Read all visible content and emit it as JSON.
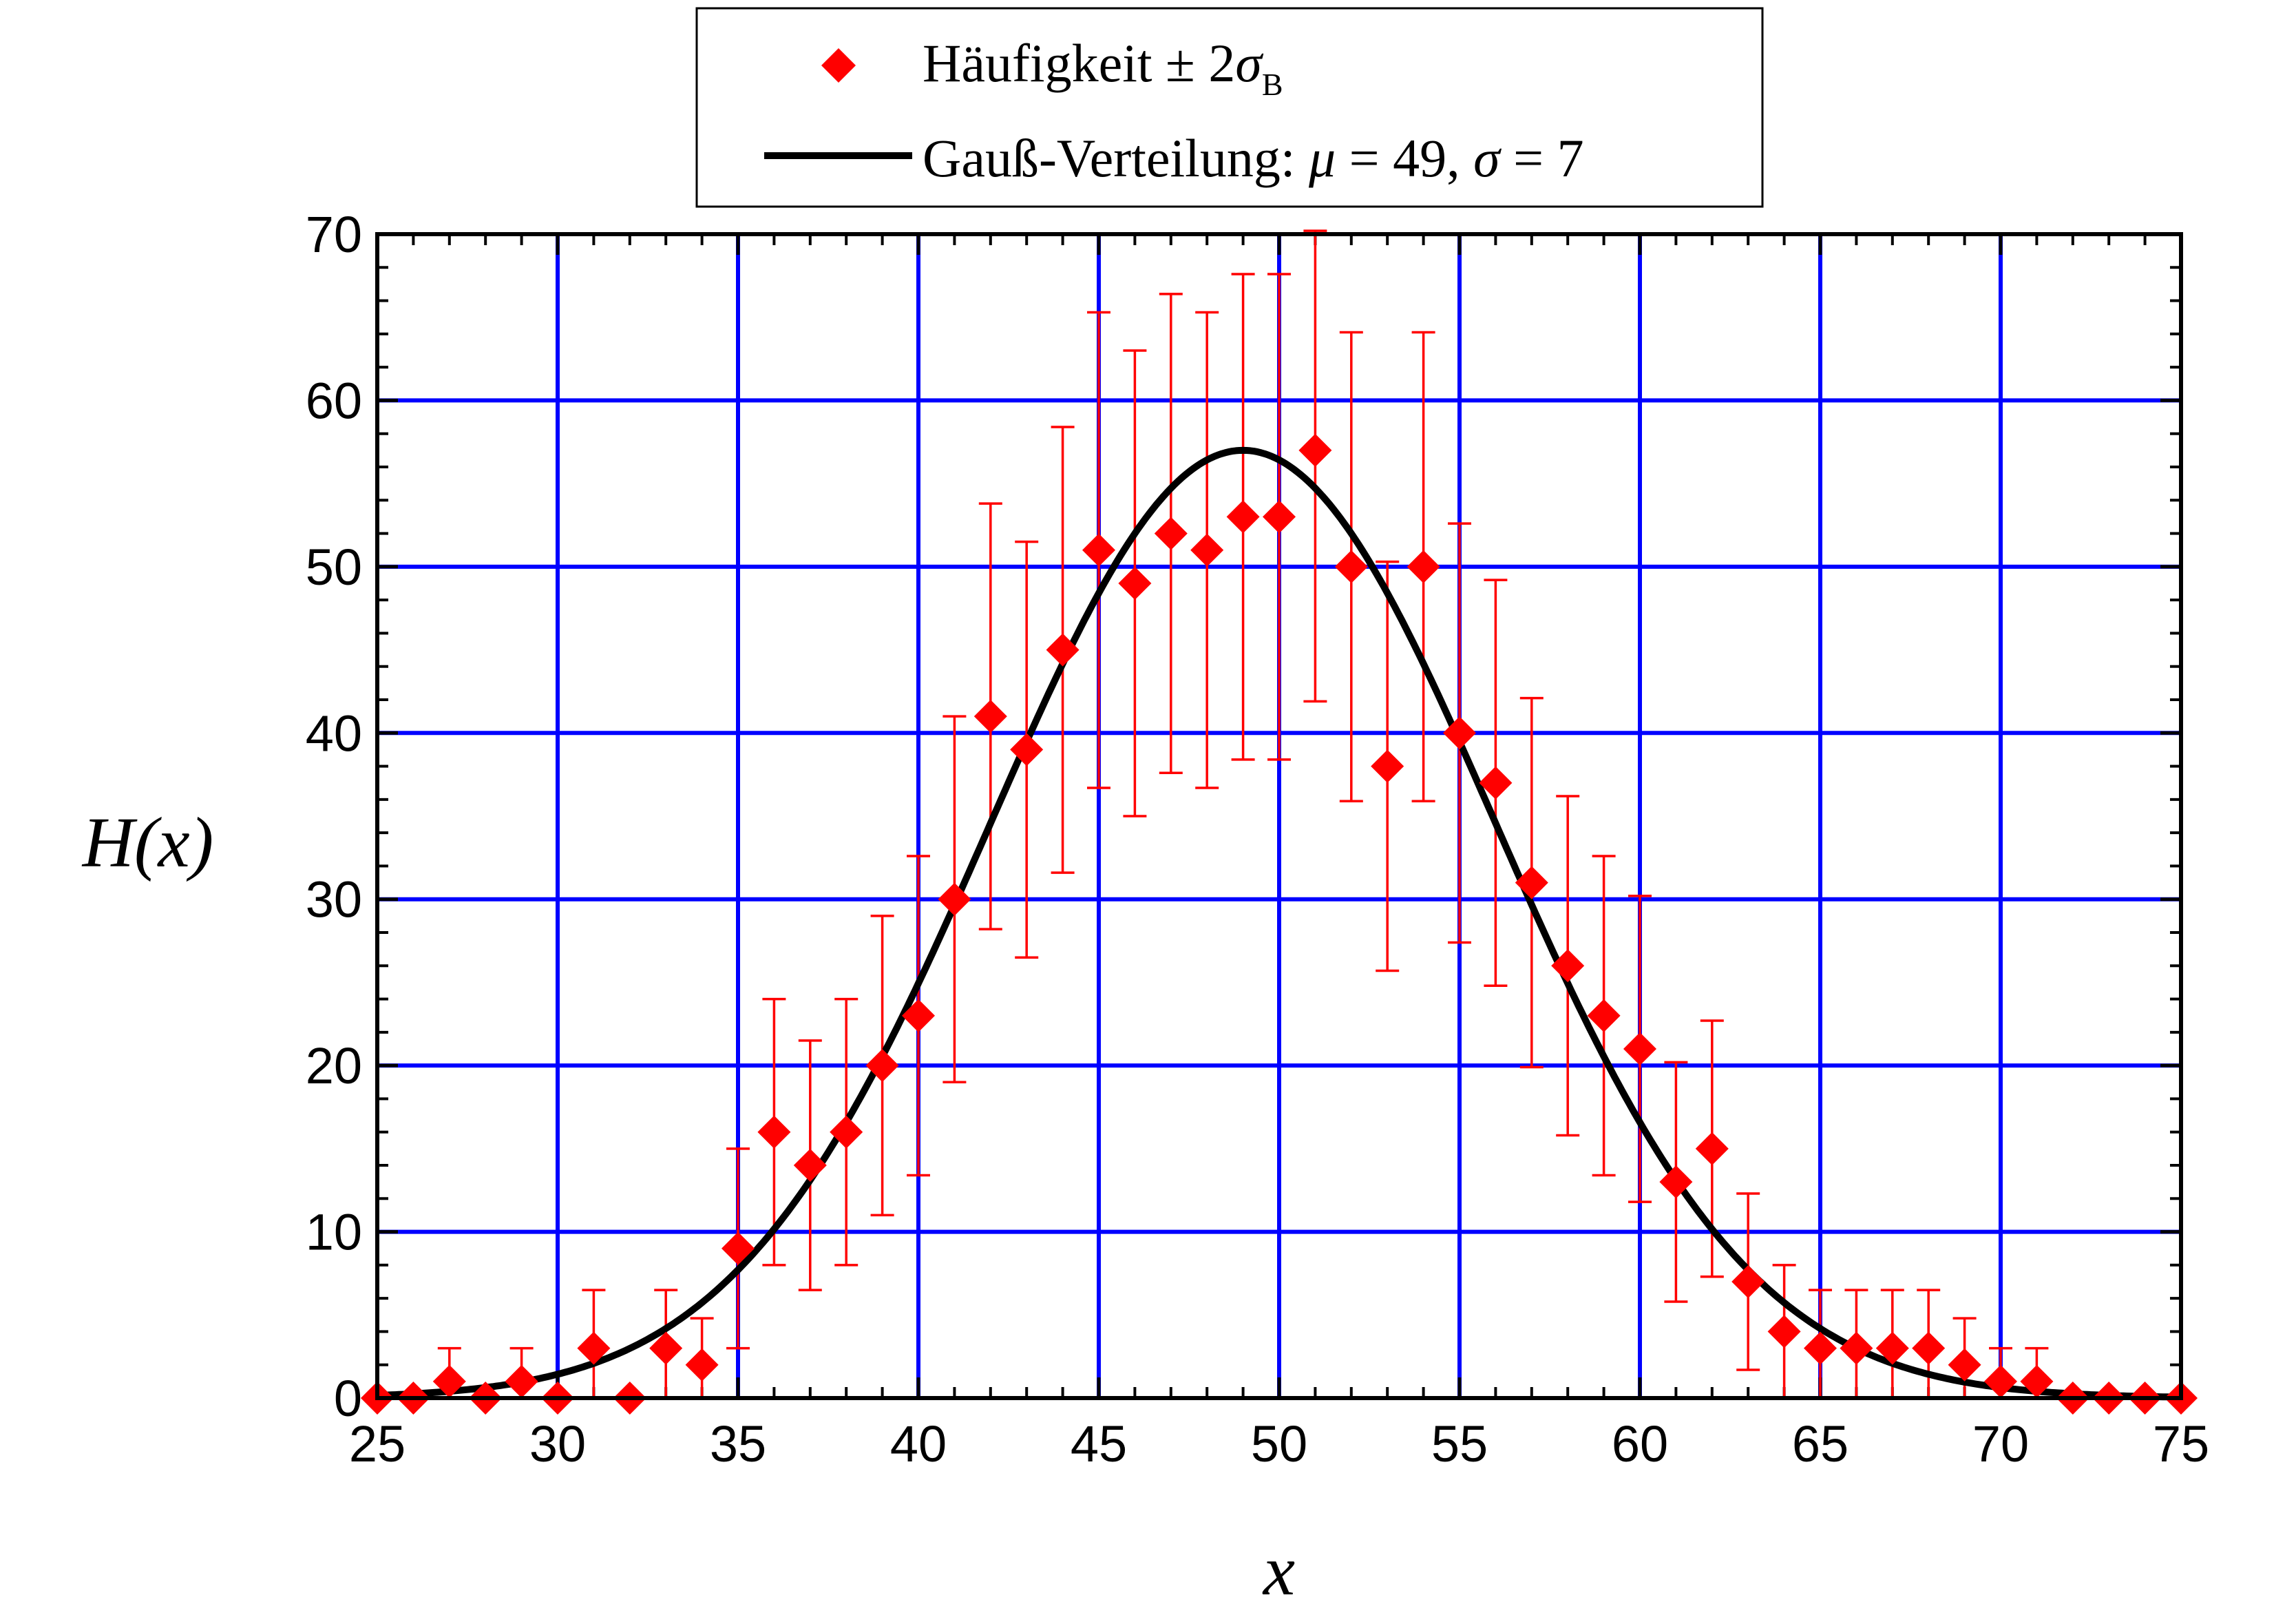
{
  "chart_data": {
    "type": "scatter",
    "xlabel": "x",
    "ylabel": "H(x)",
    "xlim": [
      25,
      75
    ],
    "ylim": [
      0,
      70
    ],
    "xticks": [
      25,
      30,
      35,
      40,
      45,
      50,
      55,
      60,
      65,
      70,
      75
    ],
    "yticks": [
      0,
      10,
      20,
      30,
      40,
      50,
      60,
      70
    ],
    "grid": true,
    "legend_position": "top-center",
    "colors": {
      "points": "#ff0000",
      "curve": "#000000",
      "grid": "#0000ff",
      "frame": "#000000"
    },
    "series": [
      {
        "name": "Häufigkeit ± 2σ_B",
        "kind": "scatter-errorbars",
        "x": [
          25,
          26,
          27,
          28,
          29,
          30,
          31,
          32,
          33,
          34,
          35,
          36,
          37,
          38,
          39,
          40,
          41,
          42,
          43,
          44,
          45,
          46,
          47,
          48,
          49,
          50,
          51,
          52,
          53,
          54,
          55,
          56,
          57,
          58,
          59,
          60,
          61,
          62,
          63,
          64,
          65,
          66,
          67,
          68,
          69,
          70,
          71,
          72,
          73,
          74,
          75
        ],
        "y": [
          0,
          0,
          1,
          0,
          1,
          0,
          3,
          0,
          3,
          2,
          9,
          16,
          14,
          16,
          20,
          23,
          30,
          41,
          39,
          45,
          51,
          49,
          52,
          51,
          53,
          53,
          57,
          50,
          38,
          50,
          40,
          37,
          31,
          26,
          23,
          21,
          13,
          15,
          7,
          4,
          3,
          3,
          3,
          3,
          2,
          1,
          1,
          0,
          0,
          0,
          0
        ],
        "error_plus_minus": [
          0,
          0,
          2,
          0,
          2,
          0,
          3.5,
          0,
          3.5,
          2.8,
          6,
          8,
          7.5,
          8,
          9,
          9.6,
          11,
          12.8,
          12.5,
          13.4,
          14.3,
          14,
          14.4,
          14.3,
          14.6,
          14.6,
          15.1,
          14.1,
          12.3,
          14.1,
          12.6,
          12.2,
          11.1,
          10.2,
          9.6,
          9.2,
          7.2,
          7.7,
          5.3,
          4,
          3.5,
          3.5,
          3.5,
          3.5,
          2.8,
          2,
          2,
          0,
          0,
          0,
          0
        ]
      },
      {
        "name": "Gauß-Verteilung",
        "kind": "line",
        "function": "gaussian",
        "mu": 49,
        "sigma": 7,
        "peak": 57
      }
    ],
    "legend": {
      "scatter_label": "Häufigkeit ± 2",
      "scatter_symbol": "σ",
      "scatter_subscript": "B",
      "line_label_prefix": "Gauß-Verteilung: ",
      "mu_symbol": "μ",
      "mu_text": " = 49, ",
      "sigma_symbol": "σ",
      "sigma_text": " = 7"
    }
  }
}
